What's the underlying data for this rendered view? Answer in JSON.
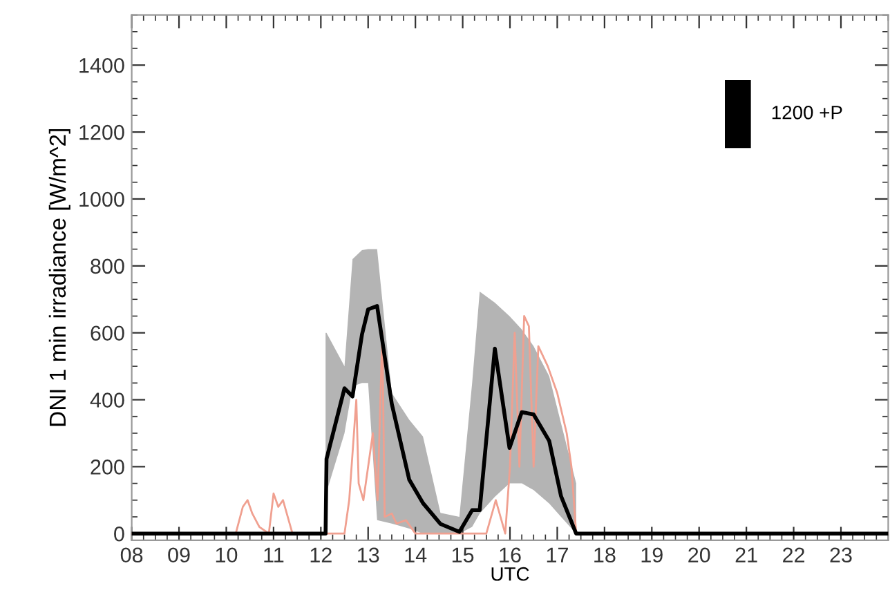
{
  "chart_data": {
    "type": "line",
    "xlabel": "UTC",
    "ylabel": "DNI 1 min irradiance [W/m^2]",
    "xlim": [
      8,
      24
    ],
    "ylim": [
      -20,
      1550
    ],
    "xticks": [
      {
        "value": 8,
        "label": "08"
      },
      {
        "value": 9,
        "label": "09"
      },
      10,
      11,
      12,
      13,
      14,
      15,
      16,
      17,
      18,
      19,
      20,
      21,
      22,
      23
    ],
    "yticks": [
      0,
      200,
      400,
      600,
      800,
      1000,
      1200,
      1400
    ],
    "grid": false,
    "legend": false,
    "series": [
      {
        "color": "#f0a090",
        "x": [
          8,
          10.2,
          10.35,
          10.45,
          10.55,
          10.7,
          10.9,
          11.0,
          11.1,
          11.2,
          11.4,
          12.5,
          12.6,
          12.75,
          12.8,
          12.9,
          13.0,
          13.1,
          13.2,
          13.3,
          13.35,
          13.5,
          13.6,
          13.8,
          14.0,
          15.5,
          15.7,
          15.9,
          16.0,
          16.1,
          16.2,
          16.3,
          16.4,
          16.5,
          16.6,
          16.8,
          17.0,
          17.2,
          17.3,
          17.4,
          24
        ],
        "values": [
          0,
          0,
          80,
          100,
          60,
          20,
          0,
          120,
          80,
          100,
          0,
          0,
          100,
          400,
          150,
          100,
          200,
          300,
          100,
          600,
          50,
          60,
          30,
          40,
          0,
          0,
          100,
          0,
          200,
          600,
          200,
          650,
          620,
          200,
          560,
          500,
          420,
          300,
          200,
          0,
          0
        ]
      },
      {
        "color": "#000000",
        "x": [
          8,
          12.1,
          12.12,
          12.5,
          12.67,
          12.87,
          13.0,
          13.19,
          13.5,
          13.87,
          14.16,
          14.53,
          14.93,
          15.2,
          15.36,
          15.68,
          15.99,
          16.25,
          16.5,
          16.83,
          17.08,
          17.4,
          24
        ],
        "values": [
          0,
          0,
          223,
          434,
          410,
          595,
          670,
          680,
          388,
          161,
          91,
          29,
          5,
          70,
          70,
          553,
          256,
          363,
          356,
          277,
          112,
          0,
          0
        ],
        "lower": [
          null,
          124,
          124,
          300,
          440,
          450,
          450,
          40,
          30,
          15,
          0,
          0,
          0,
          20,
          60,
          110,
          150,
          150,
          130,
          90,
          50,
          0,
          null
        ],
        "upper": [
          null,
          600,
          600,
          500,
          820,
          847,
          850,
          850,
          420,
          340,
          290,
          62,
          50,
          450,
          723,
          690,
          650,
          610,
          560,
          470,
          330,
          150,
          null
        ]
      },
      {
        "type": "bar",
        "name": "1200 +P",
        "color": "#000000",
        "x": [
          20.82
        ],
        "base": [
          1152
        ],
        "values": [
          203
        ]
      }
    ]
  }
}
